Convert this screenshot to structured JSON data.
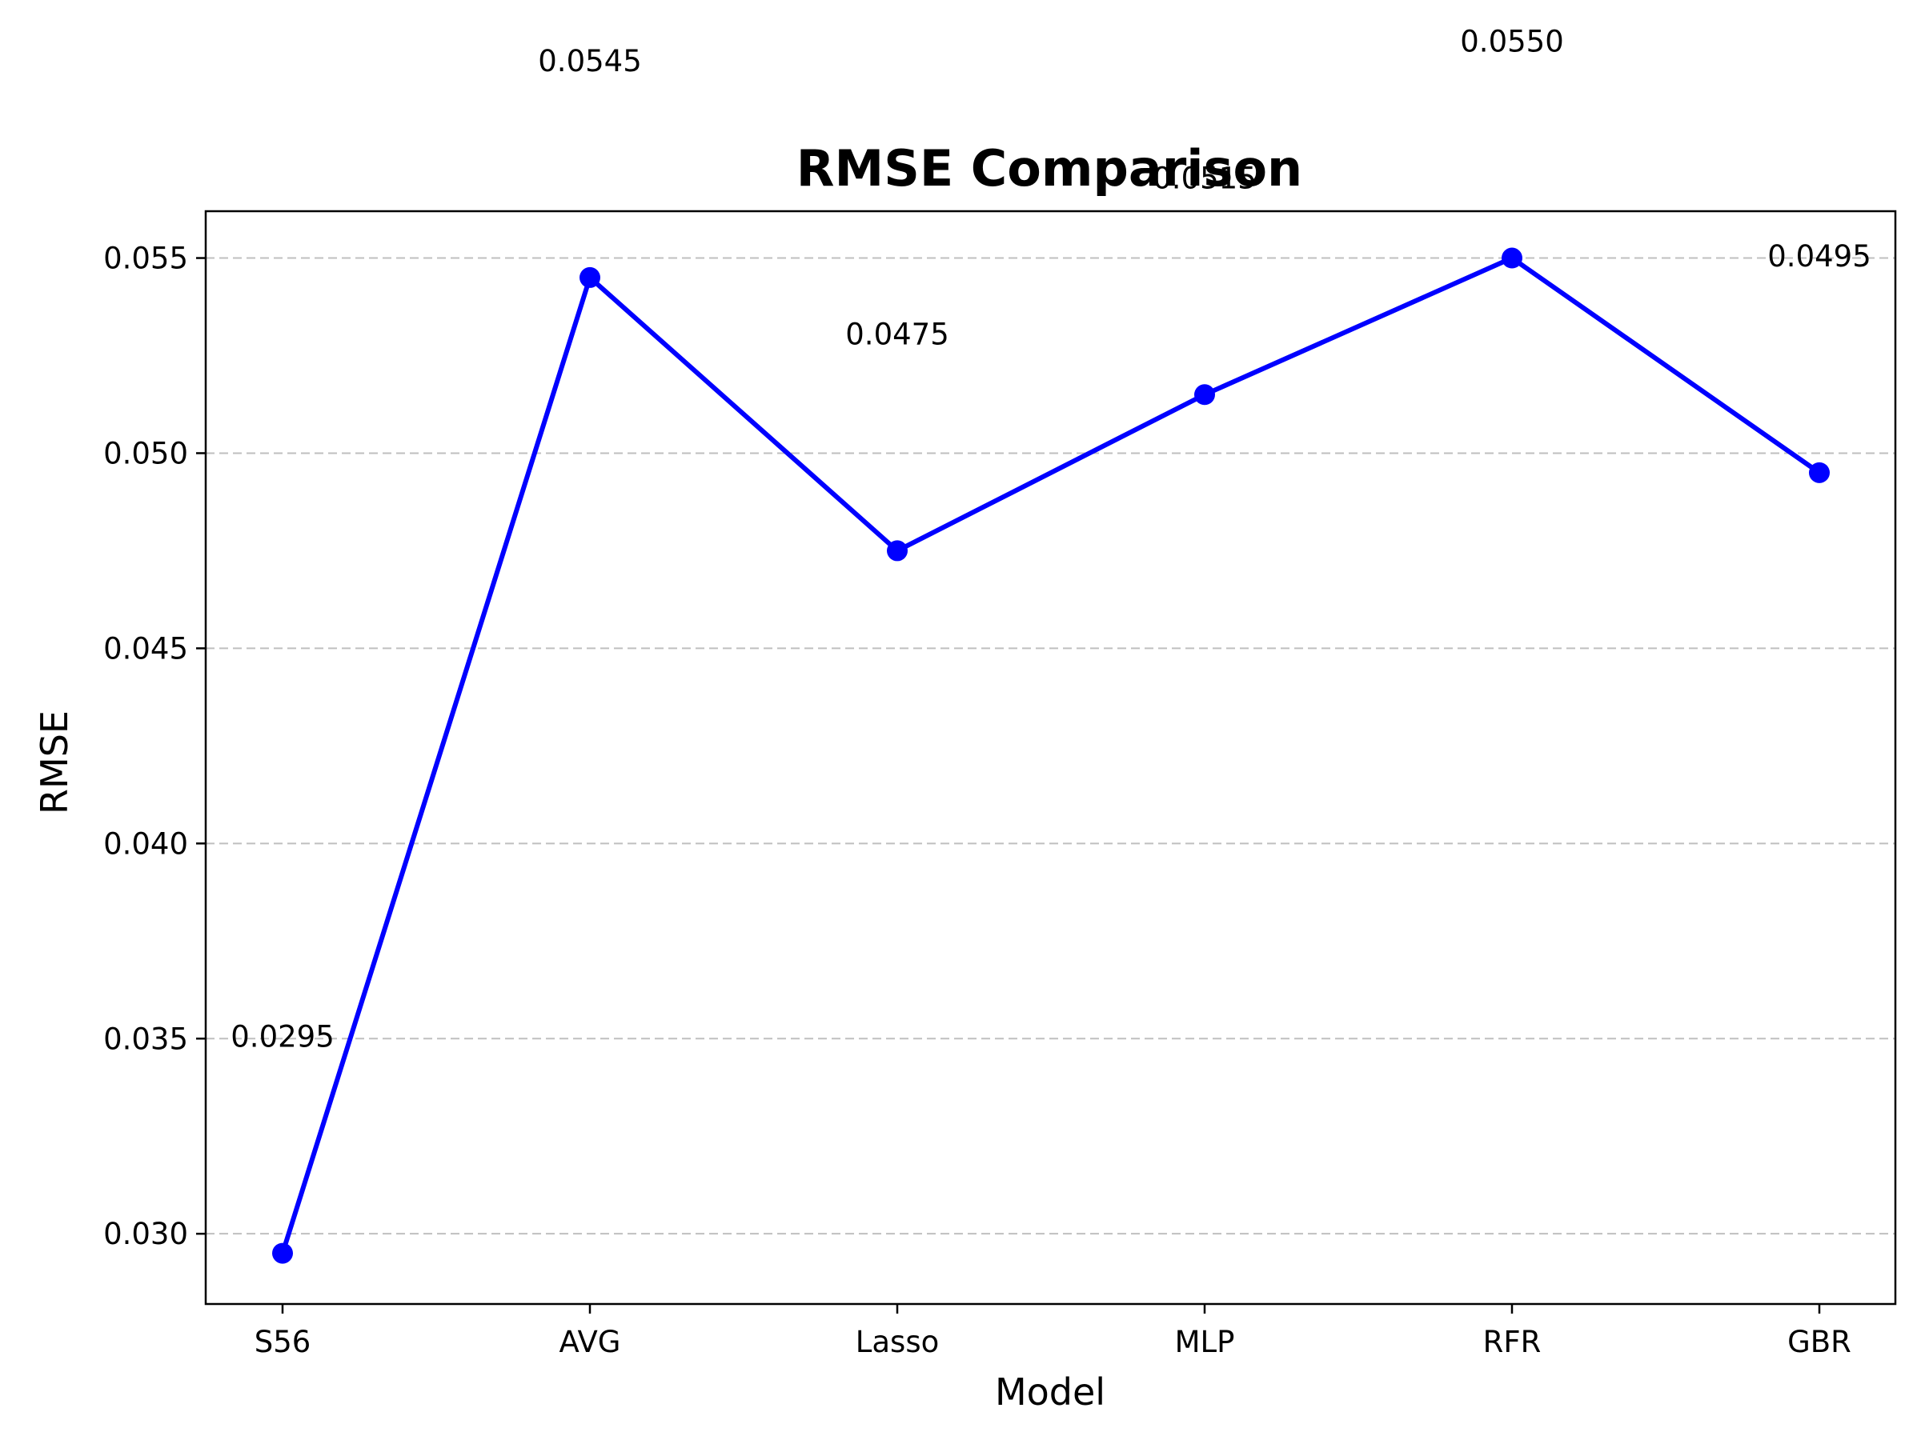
{
  "chart_data": {
    "type": "line",
    "title": "RMSE Comparison",
    "xlabel": "Model",
    "ylabel": "RMSE",
    "categories": [
      "S56",
      "AVG",
      "Lasso",
      "MLP",
      "RFR",
      "GBR"
    ],
    "series": [
      {
        "values": [
          0.0295,
          0.0545,
          0.0475,
          0.0515,
          0.055,
          0.0495
        ],
        "color": "#0000ff",
        "marker": "circle"
      }
    ],
    "data_labels": [
      "0.0295",
      "0.0545",
      "0.0475",
      "0.0515",
      "0.0550",
      "0.0495"
    ],
    "ylim": [
      0.0282,
      0.0562
    ],
    "yticks": [
      0.03,
      0.035,
      0.04,
      0.045,
      0.05,
      0.055
    ],
    "ytick_labels": [
      "0.030",
      "0.035",
      "0.040",
      "0.045",
      "0.050",
      "0.055"
    ],
    "grid": "y-dashed",
    "legend": "none"
  }
}
